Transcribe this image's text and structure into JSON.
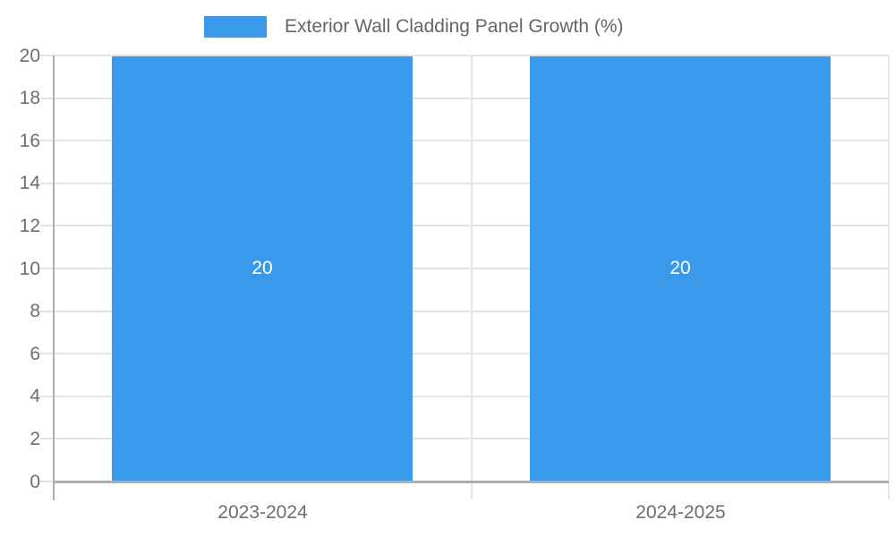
{
  "chart_data": {
    "type": "bar",
    "title": "",
    "legend_label": "Exterior Wall Cladding Panel Growth (%)",
    "legend_position": "top",
    "categories": [
      "2023-2024",
      "2024-2025"
    ],
    "series": [
      {
        "name": "Exterior Wall Cladding Panel Growth (%)",
        "values": [
          20,
          20
        ]
      }
    ],
    "data_labels": [
      "20",
      "20"
    ],
    "xlabel": "",
    "ylabel": "",
    "ylim": [
      0,
      20
    ],
    "yticks": [
      0,
      2,
      4,
      6,
      8,
      10,
      12,
      14,
      16,
      18,
      20
    ],
    "grid": true
  },
  "colors": {
    "bar": "#3b99ec",
    "grid": "#e4e4e4",
    "axis": "#aeaeae",
    "tick_label": "#6e6e6e",
    "data_label": "#ffffff",
    "legend_text": "#666666"
  }
}
